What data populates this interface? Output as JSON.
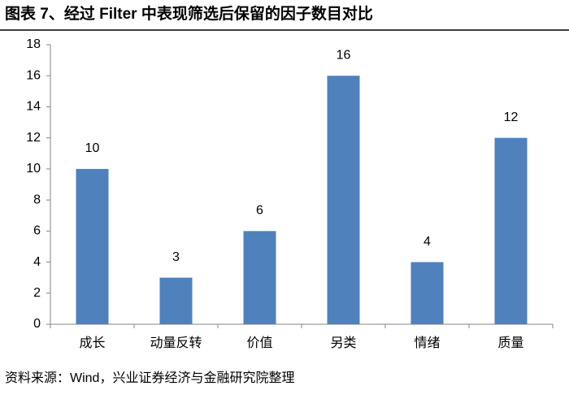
{
  "chart_data": {
    "type": "bar",
    "title": "图表 7、经过 Filter 中表现筛选后保留的因子数目对比",
    "categories": [
      "成长",
      "动量反转",
      "价值",
      "另类",
      "情绪",
      "质量"
    ],
    "values": [
      10,
      3,
      6,
      16,
      4,
      12
    ],
    "color": "#4f81bd",
    "ylim": [
      0,
      18
    ],
    "yticks": [
      0,
      2,
      4,
      6,
      8,
      10,
      12,
      14,
      16,
      18
    ],
    "grid": false
  },
  "source": "资料来源：Wind，兴业证券经济与金融研究院整理"
}
